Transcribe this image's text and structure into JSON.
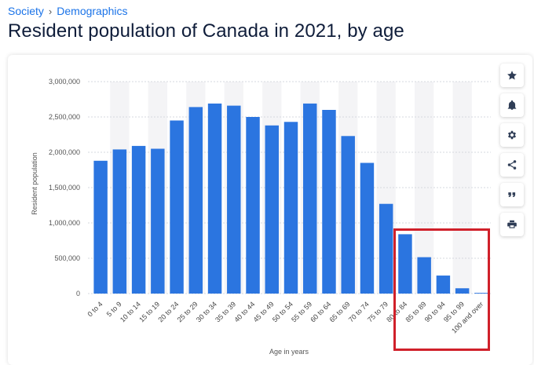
{
  "breadcrumb": {
    "items": [
      "Society",
      "Demographics"
    ]
  },
  "page": {
    "title": "Resident population of Canada in 2021, by age"
  },
  "colors": {
    "bar": "#2b75e0",
    "band": "#f4f4f6",
    "highlight": "#d0202a"
  },
  "tools": [
    {
      "name": "favorite-star-icon"
    },
    {
      "name": "notification-bell-icon"
    },
    {
      "name": "settings-gear-icon"
    },
    {
      "name": "share-icon"
    },
    {
      "name": "cite-quote-icon"
    },
    {
      "name": "print-icon"
    }
  ],
  "chart_data": {
    "type": "bar",
    "categories": [
      "0 to 4",
      "5 to 9",
      "10 to 14",
      "15 to 19",
      "20 to 24",
      "25 to 29",
      "30 to 34",
      "35 to 39",
      "40 to 44",
      "45 to 49",
      "50 to 54",
      "55 to 59",
      "60 to 64",
      "65 to 69",
      "70 to 74",
      "75 to 79",
      "80 to 84",
      "85 to 89",
      "90 to 94",
      "95 to 99",
      "100 and over"
    ],
    "values": [
      1880000,
      2040000,
      2090000,
      2050000,
      2450000,
      2640000,
      2690000,
      2660000,
      2500000,
      2380000,
      2430000,
      2690000,
      2600000,
      2230000,
      1850000,
      1270000,
      840000,
      515000,
      255000,
      75000,
      10000
    ],
    "xlabel": "Age in years",
    "ylabel": "Resident population",
    "ylim": [
      0,
      3000000
    ],
    "yticks": [
      0,
      500000,
      1000000,
      1500000,
      2000000,
      2500000,
      3000000
    ],
    "ytick_labels": [
      "0",
      "500,000",
      "1,000,000",
      "1,500,000",
      "2,000,000",
      "2,500,000",
      "3,000,000"
    ],
    "grid": true,
    "highlighted_categories": [
      "80 to 84",
      "85 to 89",
      "90 to 94",
      "95 to 99",
      "100 and over"
    ]
  }
}
